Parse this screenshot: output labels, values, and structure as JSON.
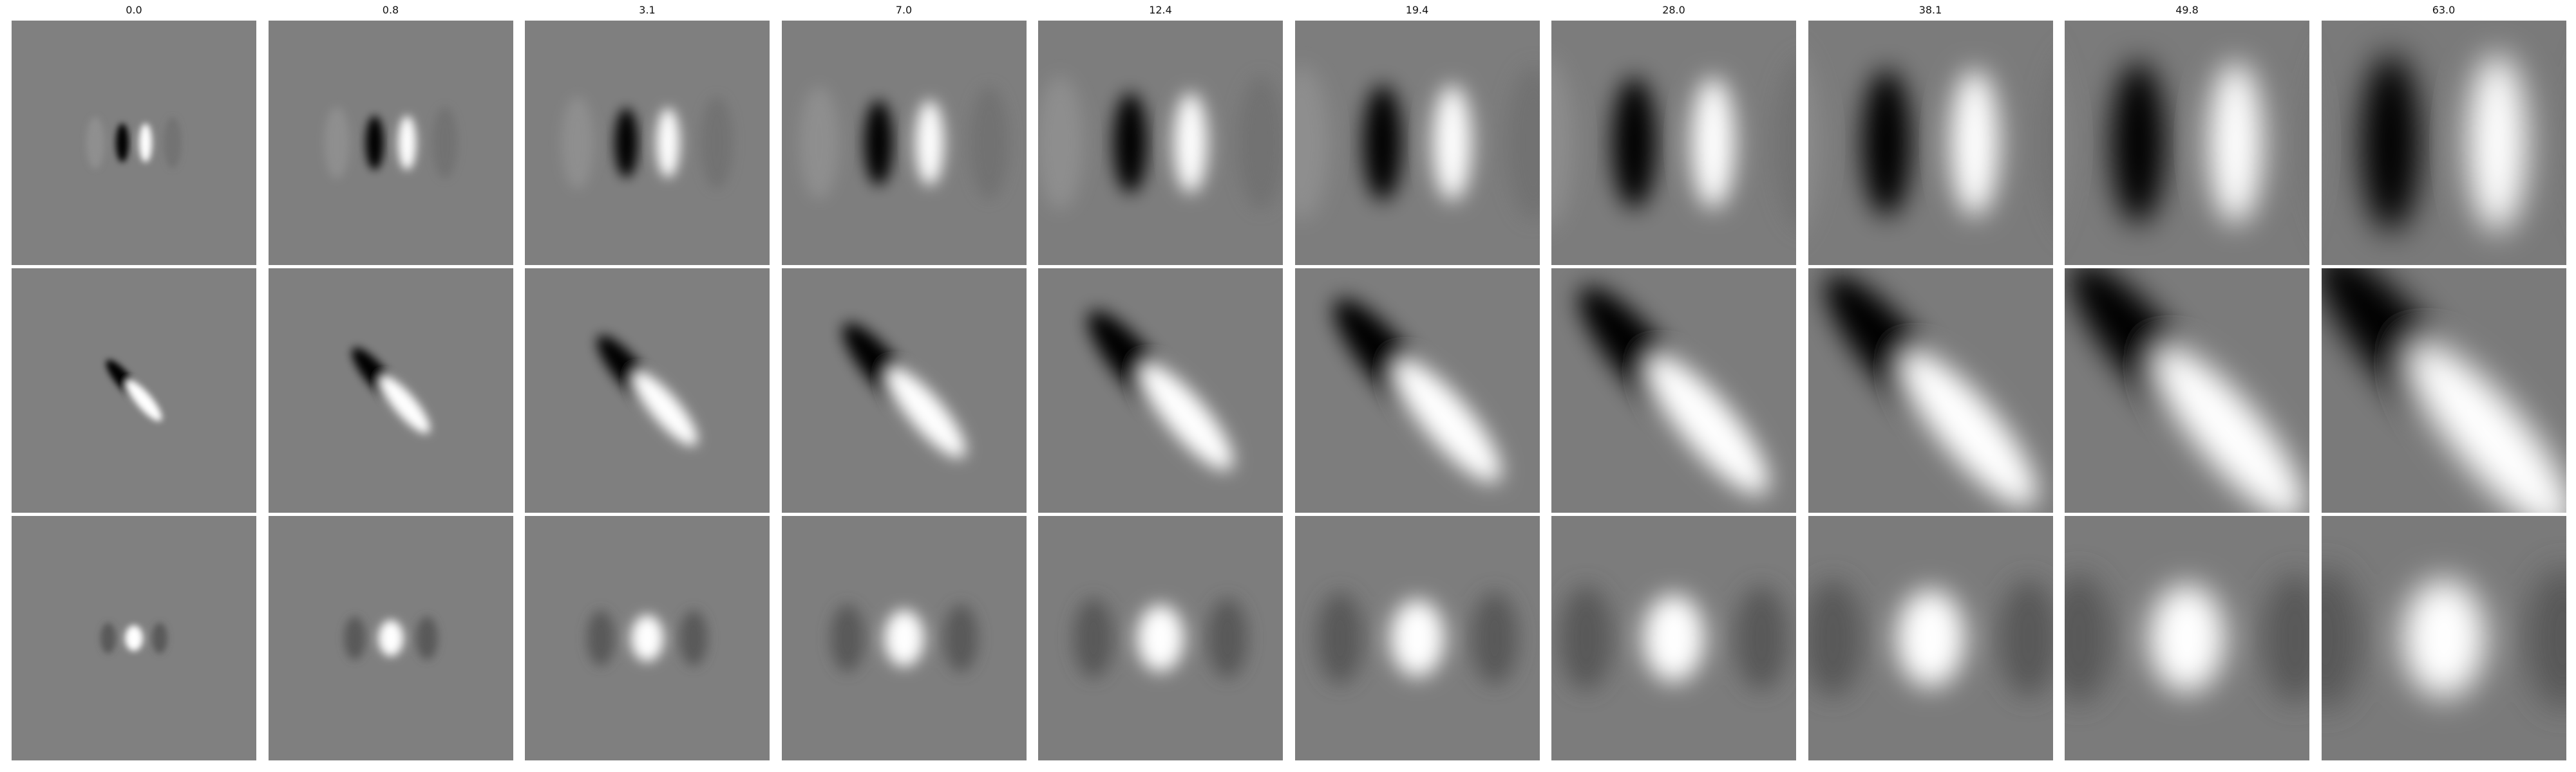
{
  "figure": {
    "column_titles": [
      "0.0",
      "0.8",
      "3.1",
      "7.0",
      "12.4",
      "19.4",
      "28.0",
      "38.1",
      "49.8",
      "63.0"
    ],
    "rows": [
      {
        "pattern": "vertical dipole: dark lobe left, bright lobe right"
      },
      {
        "pattern": "diagonal dipole: dark lobe upper-left, bright lobe lower-right"
      },
      {
        "pattern": "bright central blob with dark side lobes"
      }
    ],
    "colors": {
      "background": "#ffffff",
      "neutral_gray": "#808080",
      "dark": "#000000",
      "bright": "#ffffff"
    },
    "colormap": "gray"
  }
}
